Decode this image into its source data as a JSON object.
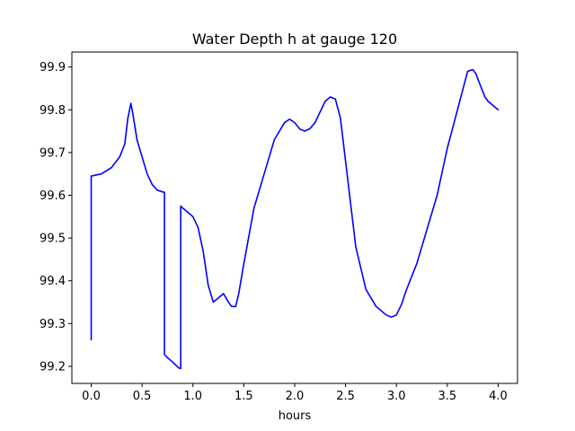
{
  "chart_data": {
    "type": "line",
    "title": "Water Depth h at gauge 120",
    "xlabel": "hours",
    "ylabel": "",
    "xlim": [
      -0.19,
      4.19
    ],
    "ylim": [
      99.16,
      99.935
    ],
    "xticks": [
      0.0,
      0.5,
      1.0,
      1.5,
      2.0,
      2.5,
      3.0,
      3.5,
      4.0
    ],
    "xtick_labels": [
      "0.0",
      "0.5",
      "1.0",
      "1.5",
      "2.0",
      "2.5",
      "3.0",
      "3.5",
      "4.0"
    ],
    "yticks": [
      99.2,
      99.3,
      99.4,
      99.5,
      99.6,
      99.7,
      99.8,
      99.9
    ],
    "ytick_labels": [
      "99.2",
      "99.3",
      "99.4",
      "99.5",
      "99.6",
      "99.7",
      "99.8",
      "99.9"
    ],
    "grid": false,
    "series": [
      {
        "color": "#0000ff",
        "x": [
          0.0,
          0.0,
          0.1,
          0.2,
          0.28,
          0.33,
          0.36,
          0.39,
          0.41,
          0.45,
          0.5,
          0.55,
          0.6,
          0.65,
          0.7,
          0.72,
          0.72,
          0.75,
          0.8,
          0.86,
          0.88,
          0.88,
          0.9,
          0.95,
          1.0,
          1.05,
          1.1,
          1.15,
          1.2,
          1.25,
          1.3,
          1.35,
          1.38,
          1.42,
          1.45,
          1.5,
          1.6,
          1.7,
          1.8,
          1.9,
          1.95,
          2.0,
          2.05,
          2.1,
          2.15,
          2.2,
          2.3,
          2.35,
          2.4,
          2.45,
          2.5,
          2.6,
          2.7,
          2.8,
          2.9,
          2.95,
          3.0,
          3.05,
          3.1,
          3.2,
          3.3,
          3.4,
          3.5,
          3.6,
          3.7,
          3.75,
          3.78,
          3.82,
          3.87,
          3.9,
          3.95,
          4.0
        ],
        "y": [
          99.262,
          99.645,
          99.65,
          99.665,
          99.69,
          99.72,
          99.78,
          99.815,
          99.79,
          99.73,
          99.69,
          99.65,
          99.625,
          99.612,
          99.608,
          99.607,
          99.228,
          99.22,
          99.21,
          99.196,
          99.195,
          99.575,
          99.57,
          99.56,
          99.55,
          99.525,
          99.47,
          99.39,
          99.35,
          99.36,
          99.37,
          99.35,
          99.34,
          99.34,
          99.37,
          99.44,
          99.57,
          99.65,
          99.73,
          99.77,
          99.778,
          99.77,
          99.755,
          99.75,
          99.756,
          99.77,
          99.82,
          99.83,
          99.825,
          99.78,
          99.68,
          99.48,
          99.38,
          99.34,
          99.32,
          99.315,
          99.32,
          99.345,
          99.38,
          99.44,
          99.52,
          99.6,
          99.71,
          99.8,
          99.89,
          99.894,
          99.885,
          99.86,
          99.83,
          99.82,
          99.81,
          99.8
        ]
      }
    ]
  }
}
